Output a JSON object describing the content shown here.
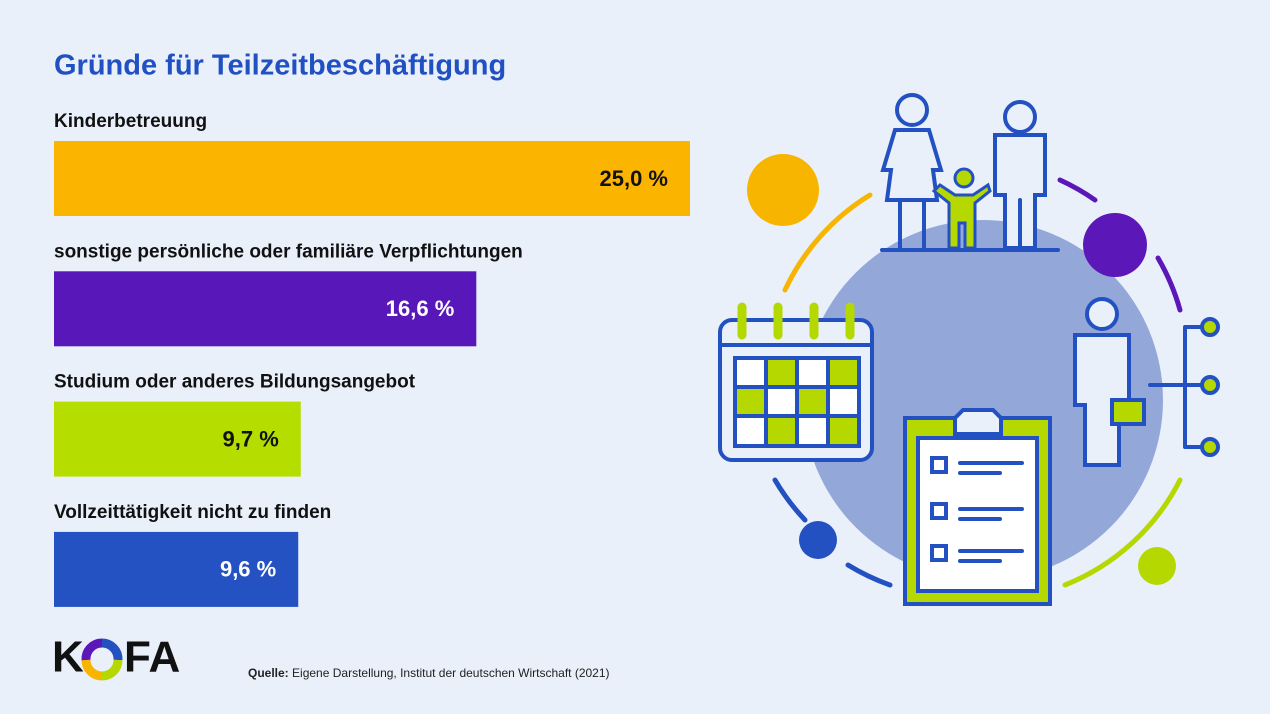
{
  "chart_data": {
    "type": "bar",
    "orientation": "horizontal",
    "title": "Gründe für Teilzeitbeschäftigung",
    "categories": [
      "Kinderbetreuung",
      "sonstige persönliche oder familiäre Verpflichtungen",
      "Studium oder anderes Bildungsangebot",
      "Vollzeittätigkeit nicht zu finden"
    ],
    "values": [
      25.0,
      16.6,
      9.7,
      9.6
    ],
    "value_labels": [
      "25,0 %",
      "16,6 %",
      "9,7 %",
      "9,6 %"
    ],
    "colors": [
      "#fbb500",
      "#5818b9",
      "#b6dd00",
      "#2452c3"
    ],
    "value_label_colors": [
      "#111111",
      "#ffffff",
      "#111111",
      "#ffffff"
    ]
  },
  "logo": [
    "K",
    "FA"
  ],
  "source_label": "Quelle:",
  "source": "Eigene Darstellung, Institut der deutschen Wirtschaft (2021)"
}
